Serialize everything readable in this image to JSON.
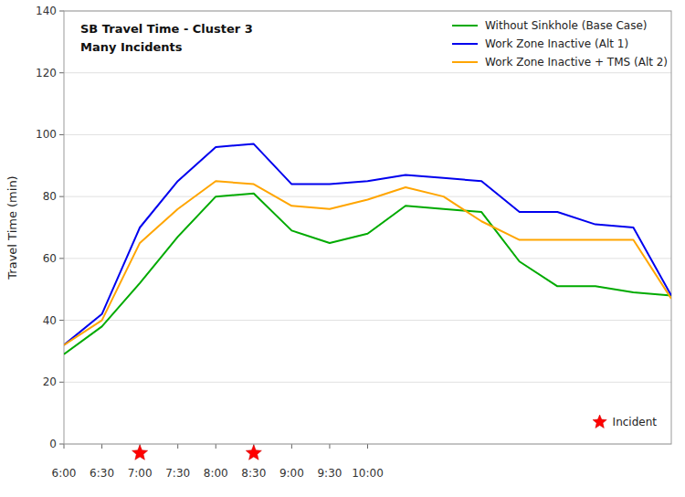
{
  "chart_data": {
    "type": "line",
    "title": "SB Travel Time - Cluster 3",
    "subtitle": "Many Incidents",
    "y_label": "Travel Time (min)",
    "x": [
      0,
      0.5,
      1.0,
      1.5,
      2.0,
      2.5,
      3.0,
      3.5,
      4.0,
      4.5,
      5.0,
      5.5,
      6.0,
      6.5,
      7.0,
      7.5,
      8.0
    ],
    "xlim": [
      0,
      8
    ],
    "xticks": [
      {
        "value": 0,
        "label": "6:00"
      },
      {
        "value": 0.5,
        "label": "6:30"
      },
      {
        "value": 1,
        "label": "7:00"
      },
      {
        "value": 1.5,
        "label": "7:30"
      },
      {
        "value": 2,
        "label": "8:00"
      },
      {
        "value": 2.5,
        "label": "8:30"
      },
      {
        "value": 3,
        "label": "9:00"
      },
      {
        "value": 3.5,
        "label": "9:30"
      },
      {
        "value": 4,
        "label": "10:00"
      }
    ],
    "ylim": [
      0,
      140
    ],
    "yticks": [
      0,
      20,
      40,
      60,
      80,
      100,
      120,
      140
    ],
    "grid": true,
    "legend": "upper right",
    "series": [
      {
        "name": "Without Sinkhole (Base Case)",
        "color": "#00aa00",
        "values": [
          29,
          38,
          52,
          67,
          80,
          81,
          69,
          65,
          68,
          77,
          76,
          75,
          59,
          51,
          51,
          49,
          48
        ]
      },
      {
        "name": "Work Zone Inactive (Alt 1)",
        "color": "#0000ee",
        "values": [
          32,
          42,
          70,
          85,
          96,
          97,
          84,
          84,
          85,
          87,
          86,
          85,
          75,
          75,
          71,
          70,
          48
        ]
      },
      {
        "name": "Work Zone Inactive + TMS (Alt 2)",
        "color": "#ffa500",
        "values": [
          32,
          40,
          65,
          76,
          85,
          84,
          77,
          76,
          79,
          83,
          80,
          72,
          66,
          66,
          66,
          66,
          47
        ]
      }
    ],
    "incidents": {
      "name": "Incident",
      "type": "scatter",
      "marker": "star",
      "color": "red",
      "x": [
        1.0,
        2.5
      ]
    }
  }
}
